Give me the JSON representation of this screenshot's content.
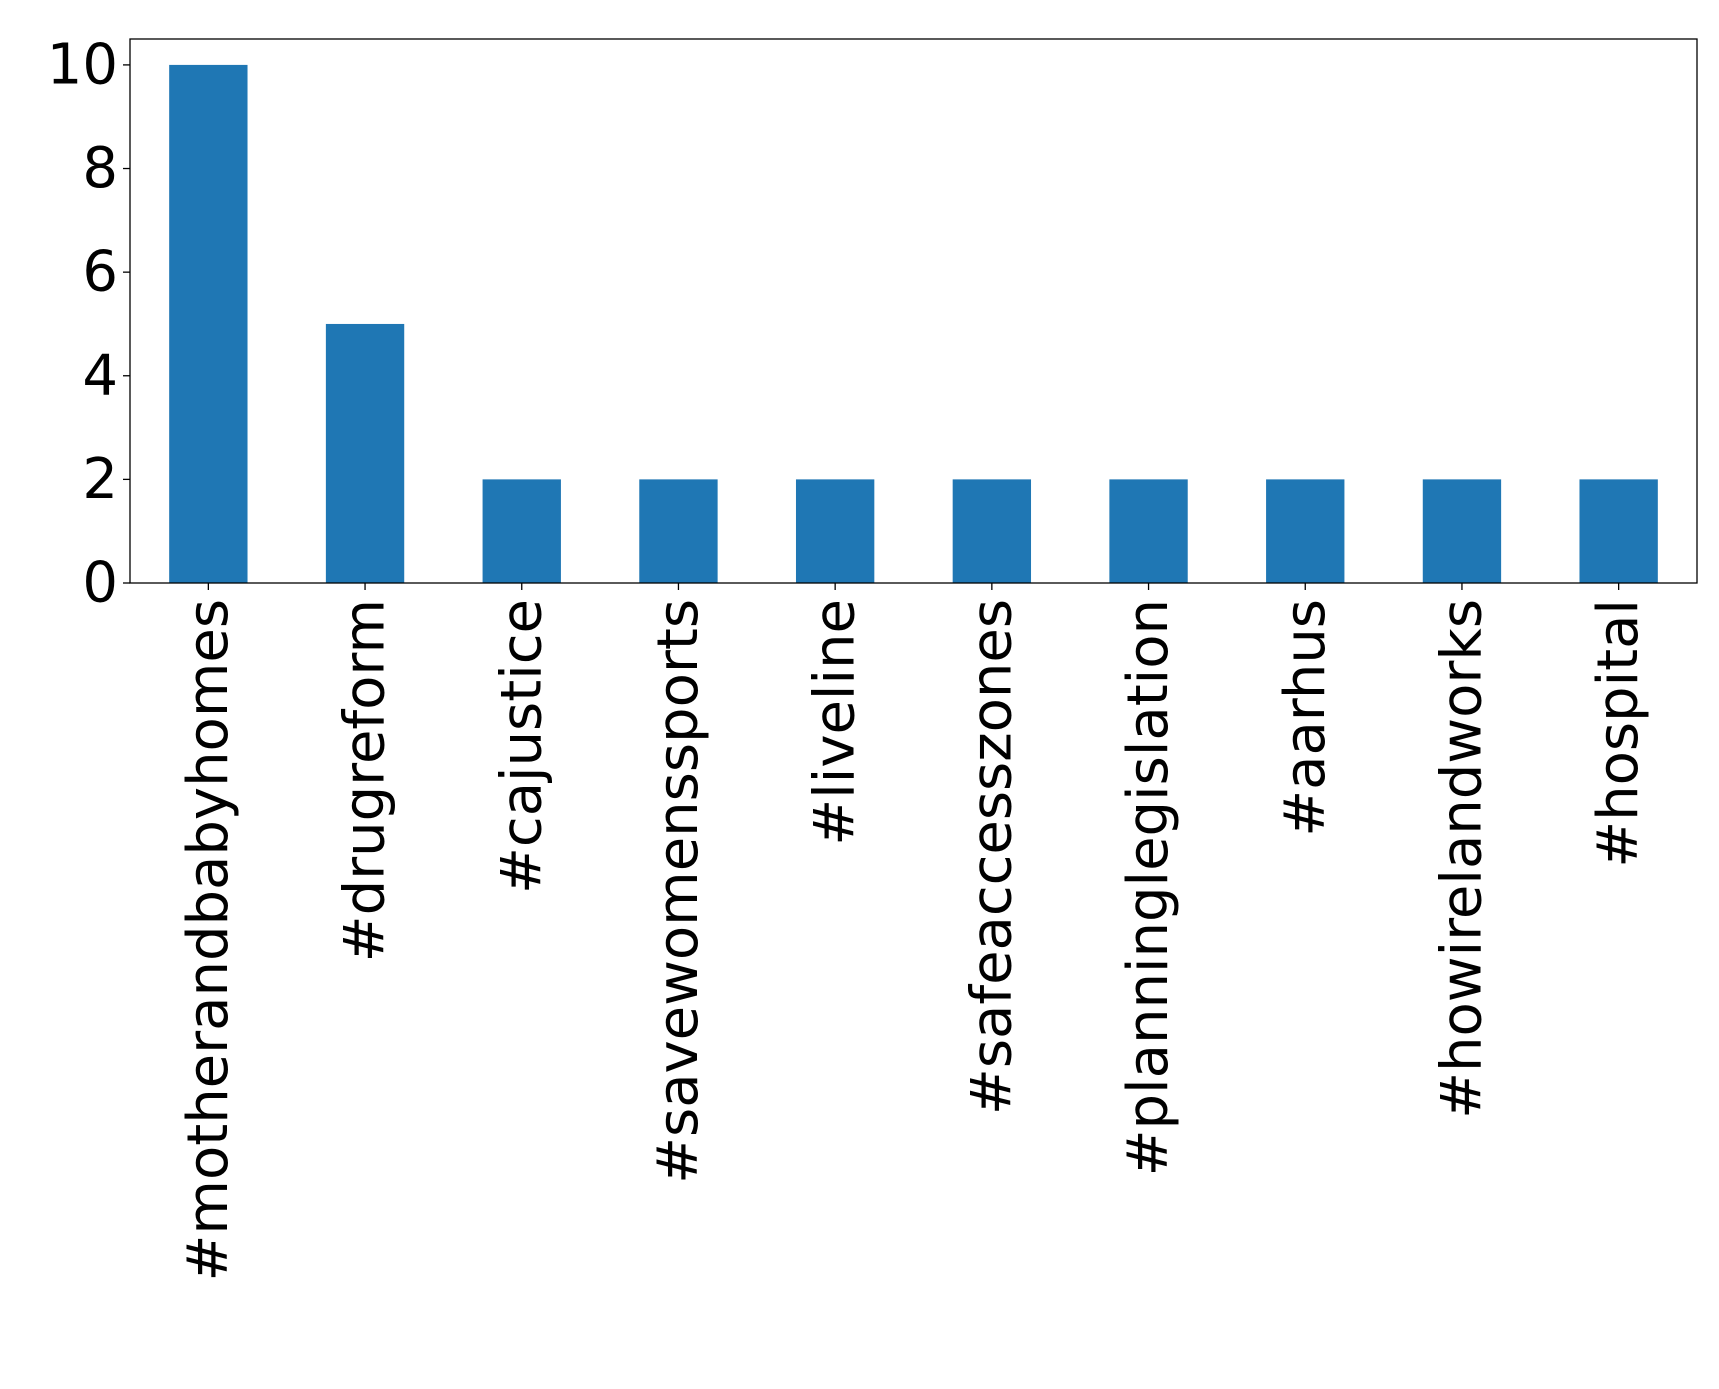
{
  "chart_data": {
    "type": "bar",
    "title": "",
    "xlabel": "",
    "ylabel": "",
    "categories": [
      "#motherandbabyhomes",
      "#drugreform",
      "#cajustice",
      "#savewomenssports",
      "#liveline",
      "#safeaccesszones",
      "#planninglegislation",
      "#aarhus",
      "#howirelandworks",
      "#hospital"
    ],
    "values": [
      10,
      5,
      2,
      2,
      2,
      2,
      2,
      2,
      2,
      2
    ],
    "ylim": [
      0,
      10.5
    ],
    "yticks": [
      0,
      2,
      4,
      6,
      8,
      10
    ],
    "grid": false,
    "legend": "none",
    "bar_color": "#1f77b4"
  }
}
